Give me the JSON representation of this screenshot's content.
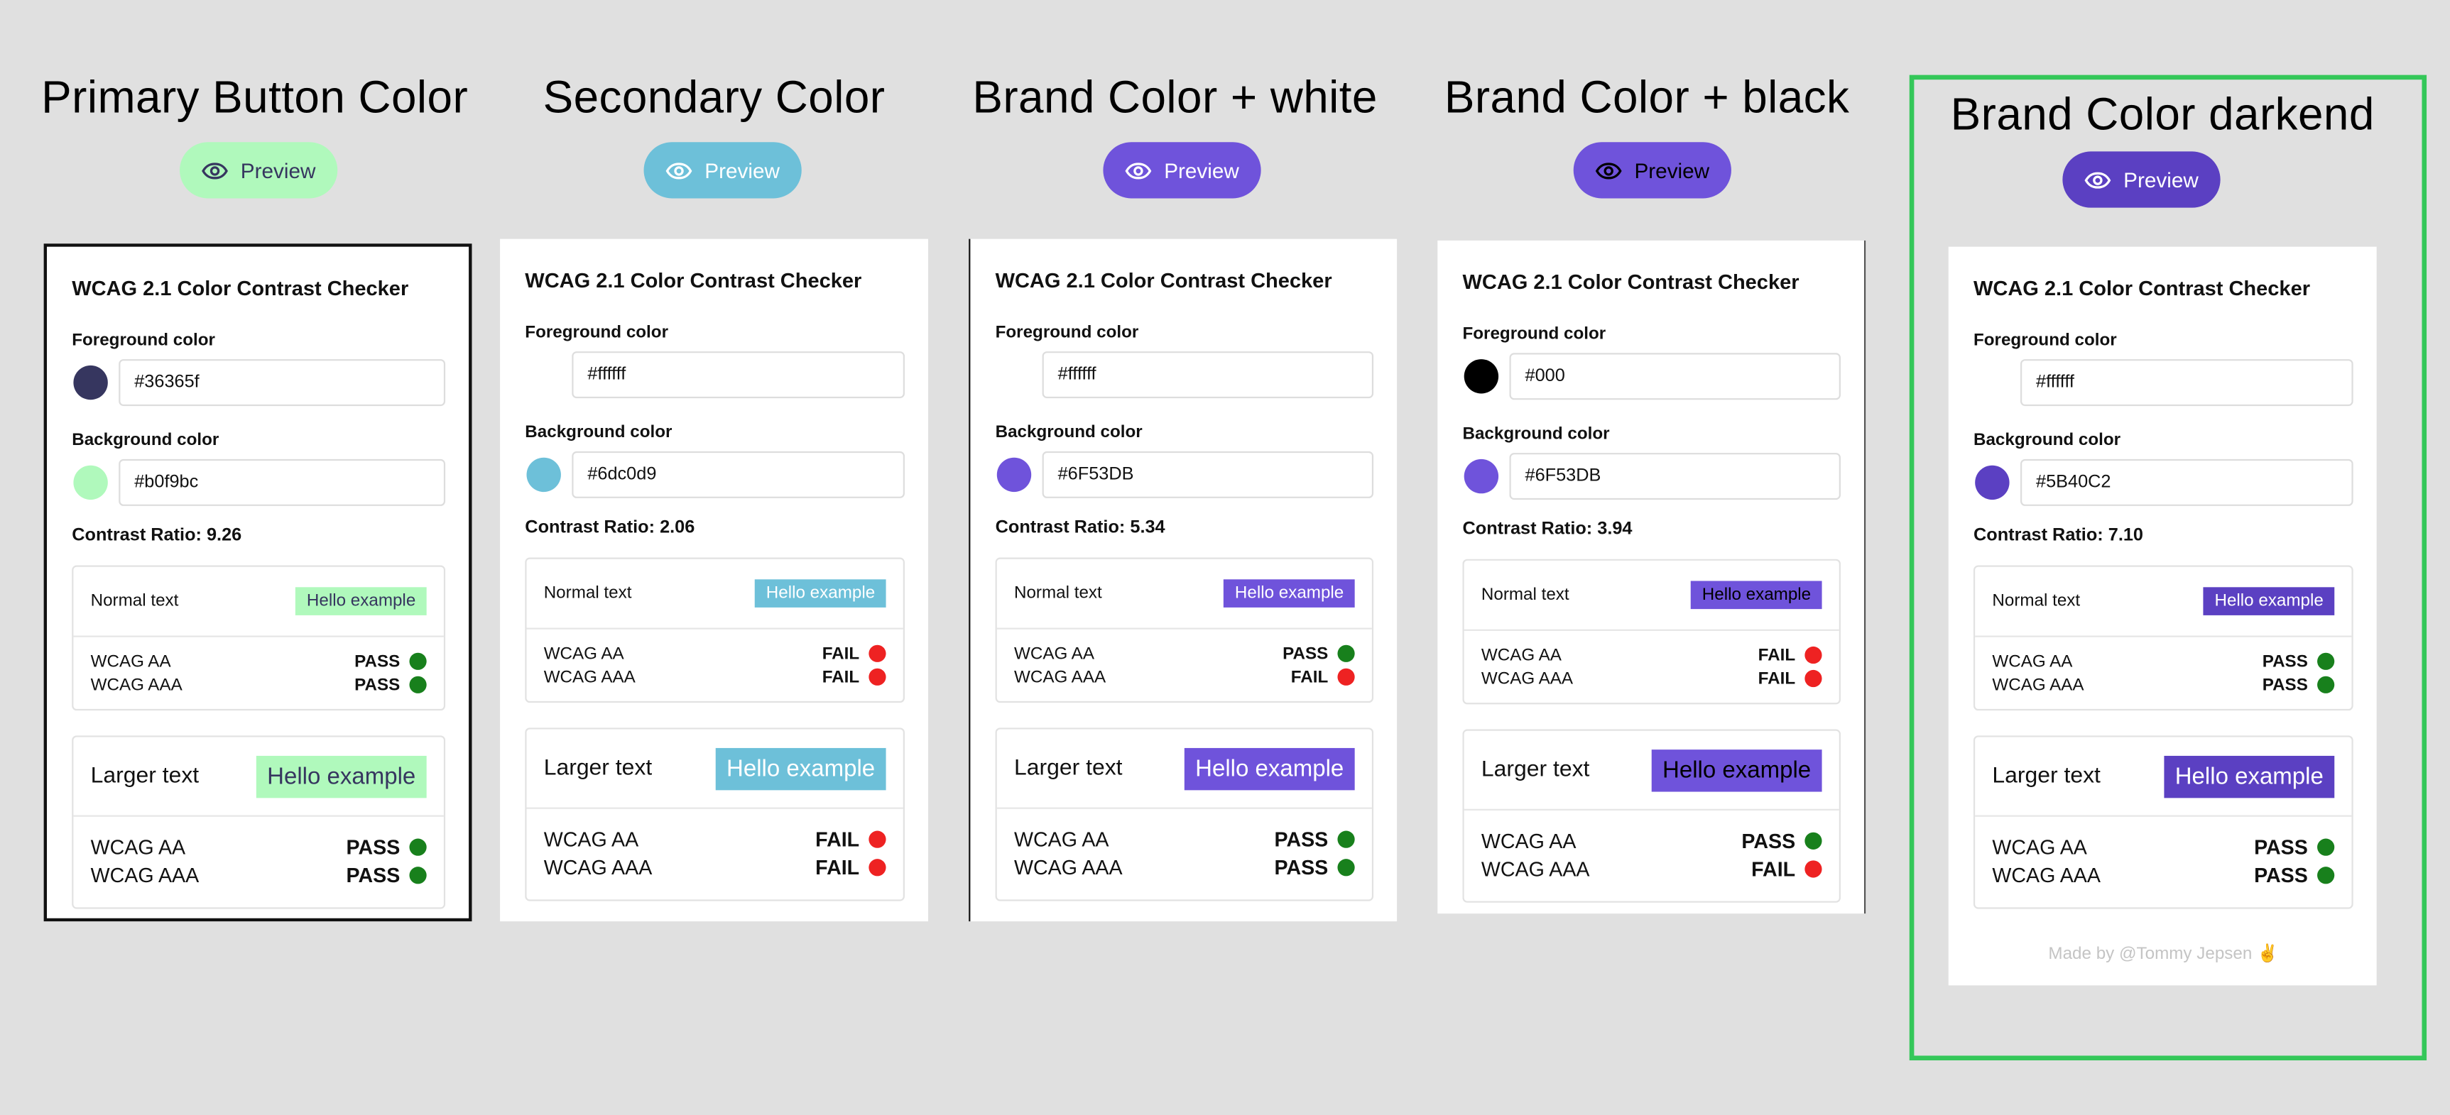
{
  "columns": [
    {
      "title": "Primary Button Color",
      "preview": {
        "label": "Preview",
        "bg": "#b0f9bc",
        "fg": "#36365f"
      },
      "checker": {
        "title": "WCAG 2.1 Color Contrast Checker",
        "foreground_label": "Foreground color",
        "foreground": "#36365f",
        "background_label": "Background color",
        "background": "#b0f9bc",
        "contrast": "Contrast Ratio: 9.26",
        "normal": {
          "label": "Normal text",
          "sample": "Hello example",
          "results": [
            {
              "label": "WCAG AA",
              "status": "PASS"
            },
            {
              "label": "WCAG AAA",
              "status": "PASS"
            }
          ]
        },
        "large": {
          "label": "Larger text",
          "sample": "Hello example",
          "results": [
            {
              "label": "WCAG AA",
              "status": "PASS"
            },
            {
              "label": "WCAG AAA",
              "status": "PASS"
            }
          ]
        }
      }
    },
    {
      "title": "Secondary Color",
      "preview": {
        "label": "Preview",
        "bg": "#6dc0d9",
        "fg": "#ffffff"
      },
      "checker": {
        "title": "WCAG 2.1 Color Contrast Checker",
        "foreground_label": "Foreground color",
        "foreground": "#ffffff",
        "background_label": "Background color",
        "background": "#6dc0d9",
        "contrast": "Contrast Ratio: 2.06",
        "normal": {
          "label": "Normal text",
          "sample": "Hello example",
          "results": [
            {
              "label": "WCAG AA",
              "status": "FAIL"
            },
            {
              "label": "WCAG AAA",
              "status": "FAIL"
            }
          ]
        },
        "large": {
          "label": "Larger text",
          "sample": "Hello example",
          "results": [
            {
              "label": "WCAG AA",
              "status": "FAIL"
            },
            {
              "label": "WCAG AAA",
              "status": "FAIL"
            }
          ]
        }
      }
    },
    {
      "title": "Brand Color + white",
      "preview": {
        "label": "Preview",
        "bg": "#6F53DB",
        "fg": "#ffffff"
      },
      "checker": {
        "title": "WCAG 2.1 Color Contrast Checker",
        "foreground_label": "Foreground color",
        "foreground": "#ffffff",
        "background_label": "Background color",
        "background": "#6F53DB",
        "contrast": "Contrast Ratio: 5.34",
        "normal": {
          "label": "Normal text",
          "sample": "Hello example",
          "results": [
            {
              "label": "WCAG AA",
              "status": "PASS"
            },
            {
              "label": "WCAG AAA",
              "status": "FAIL"
            }
          ]
        },
        "large": {
          "label": "Larger text",
          "sample": "Hello example",
          "results": [
            {
              "label": "WCAG AA",
              "status": "PASS"
            },
            {
              "label": "WCAG AAA",
              "status": "PASS"
            }
          ]
        }
      }
    },
    {
      "title": "Brand Color + black",
      "preview": {
        "label": "Preview",
        "bg": "#6F53DB",
        "fg": "#000000"
      },
      "checker": {
        "title": "WCAG 2.1 Color Contrast Checker",
        "foreground_label": "Foreground color",
        "foreground": "#000",
        "background_label": "Background color",
        "background": "#6F53DB",
        "contrast": "Contrast Ratio: 3.94",
        "normal": {
          "label": "Normal text",
          "sample": "Hello example",
          "results": [
            {
              "label": "WCAG AA",
              "status": "FAIL"
            },
            {
              "label": "WCAG AAA",
              "status": "FAIL"
            }
          ]
        },
        "large": {
          "label": "Larger text",
          "sample": "Hello example",
          "results": [
            {
              "label": "WCAG AA",
              "status": "PASS"
            },
            {
              "label": "WCAG AAA",
              "status": "FAIL"
            }
          ]
        }
      }
    },
    {
      "title": "Brand Color darkend",
      "preview": {
        "label": "Preview",
        "bg": "#5B40C2",
        "fg": "#ffffff"
      },
      "checker": {
        "title": "WCAG 2.1 Color Contrast Checker",
        "foreground_label": "Foreground color",
        "foreground": "#ffffff",
        "background_label": "Background color",
        "background": "#5B40C2",
        "contrast": "Contrast Ratio: 7.10",
        "normal": {
          "label": "Normal text",
          "sample": "Hello example",
          "results": [
            {
              "label": "WCAG AA",
              "status": "PASS"
            },
            {
              "label": "WCAG AAA",
              "status": "PASS"
            }
          ]
        },
        "large": {
          "label": "Larger text",
          "sample": "Hello example",
          "results": [
            {
              "label": "WCAG AA",
              "status": "PASS"
            },
            {
              "label": "WCAG AAA",
              "status": "PASS"
            }
          ]
        },
        "footer": "Made by @Tommy Jepsen ✌️"
      }
    }
  ],
  "status_colors": {
    "PASS": "#18801c",
    "FAIL": "#ee2222"
  },
  "highlight_color": "#34c759"
}
